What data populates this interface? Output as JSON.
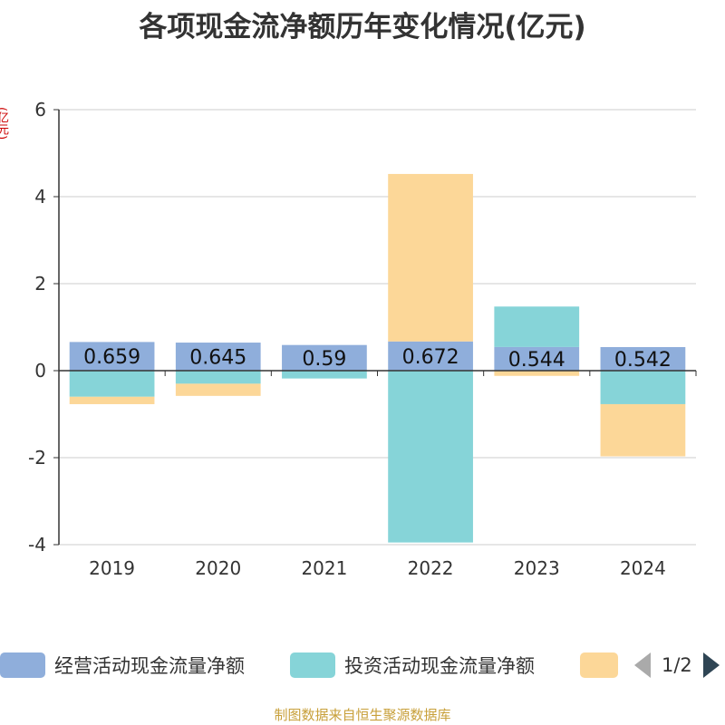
{
  "chart_data": {
    "type": "bar",
    "stacked": true,
    "title": "各项现金流净额历年变化情况(亿元)",
    "ylabel": "(亿元)",
    "categories": [
      "2019",
      "2020",
      "2021",
      "2022",
      "2023",
      "2024"
    ],
    "ylim": [
      -4,
      6
    ],
    "yticks": [
      -4,
      -2,
      0,
      2,
      4,
      6
    ],
    "grid": true,
    "legend_position": "bottom",
    "series": [
      {
        "name": "经营活动现金流量净额",
        "color": "#8faedb",
        "values": [
          0.659,
          0.645,
          0.59,
          0.672,
          0.544,
          0.542
        ]
      },
      {
        "name": "投资活动现金流量净额",
        "color": "#86d4d8",
        "values": [
          -0.6,
          -0.3,
          -0.18,
          -3.95,
          0.93,
          -0.77
        ]
      },
      {
        "name": "",
        "color": "#fcd798",
        "values": [
          -0.17,
          -0.28,
          0,
          3.85,
          -0.12,
          -1.2
        ]
      }
    ],
    "data_labels": [
      "0.659",
      "0.645",
      "0.59",
      "0.672",
      "0.544",
      "0.542"
    ]
  },
  "legend": {
    "pager": "1/2"
  },
  "source": "制图数据来自恒生聚源数据库"
}
